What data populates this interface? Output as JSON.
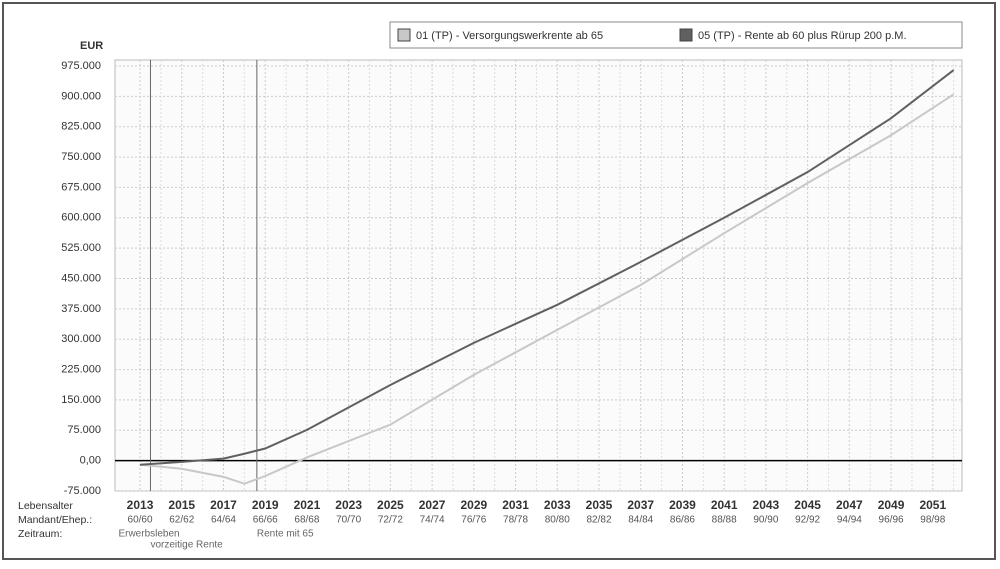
{
  "chart_data": {
    "type": "line",
    "y_label": "EUR",
    "x": [
      2013,
      2015,
      2017,
      2018,
      2019,
      2021,
      2025,
      2029,
      2033,
      2037,
      2041,
      2045,
      2049,
      2052
    ],
    "series": [
      {
        "name": "01 (TP) - Versorgungswerkrente ab 65",
        "color": "#c8c8c8",
        "values": [
          -10000,
          -20000,
          -40000,
          -57000,
          -38000,
          8000,
          89000,
          212000,
          323000,
          434000,
          562000,
          686000,
          804000,
          905000
        ]
      },
      {
        "name": "05 (TP) - Rente ab 60 plus Rürup 200 p.M.",
        "color": "#606060",
        "values": [
          -10000,
          -3000,
          5000,
          17000,
          30000,
          76000,
          187000,
          291000,
          385000,
          491000,
          600000,
          713000,
          846000,
          965000
        ]
      }
    ],
    "xlim": [
      2011.8,
      2052.4
    ],
    "ylim": [
      -75000,
      975000
    ],
    "yticks": [
      {
        "value": -75000,
        "label": "-75.000"
      },
      {
        "value": 0,
        "label": "0,00"
      },
      {
        "value": 75000,
        "label": "75.000"
      },
      {
        "value": 150000,
        "label": "150.000"
      },
      {
        "value": 225000,
        "label": "225.000"
      },
      {
        "value": 300000,
        "label": "300.000"
      },
      {
        "value": 375000,
        "label": "375.000"
      },
      {
        "value": 450000,
        "label": "450.000"
      },
      {
        "value": 525000,
        "label": "525.000"
      },
      {
        "value": 600000,
        "label": "600.000"
      },
      {
        "value": 675000,
        "label": "675.000"
      },
      {
        "value": 750000,
        "label": "750.000"
      },
      {
        "value": 825000,
        "label": "825.000"
      },
      {
        "value": 900000,
        "label": "900.000"
      },
      {
        "value": 975000,
        "label": "975.000"
      }
    ],
    "xticks": [
      2013,
      2015,
      2017,
      2019,
      2021,
      2023,
      2025,
      2027,
      2029,
      2031,
      2033,
      2035,
      2037,
      2039,
      2041,
      2043,
      2045,
      2047,
      2049,
      2051
    ],
    "age_labels": [
      "60/60",
      "62/62",
      "64/64",
      "66/66",
      "68/68",
      "70/70",
      "72/72",
      "74/74",
      "76/76",
      "78/78",
      "80/80",
      "82/82",
      "84/84",
      "86/86",
      "88/88",
      "90/90",
      "92/92",
      "94/94",
      "96/96",
      "98/98"
    ],
    "row_labels": [
      "Lebensalter",
      "Mandant/Ehep.:",
      "Zeitraum:"
    ],
    "markers": [
      {
        "x": 2013.5,
        "label": "Erwerbsleben"
      },
      {
        "x": 2018.6,
        "label": "Rente mit 65"
      }
    ],
    "annotation": "vorzeitige Rente",
    "grid": true
  }
}
